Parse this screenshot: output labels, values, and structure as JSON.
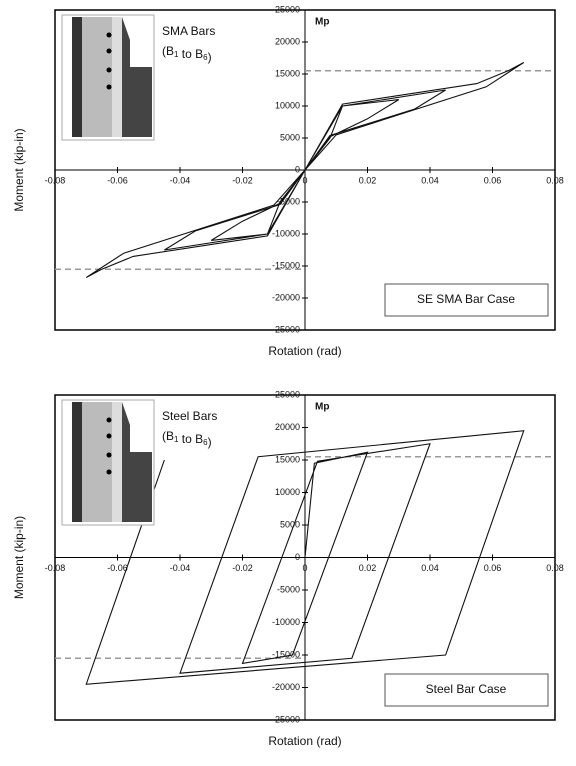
{
  "chart_data": [
    {
      "type": "line",
      "xlabel": "Rotation (rad)",
      "ylabel": "Moment (kip-in)",
      "xlim": [
        -0.08,
        0.08
      ],
      "ylim": [
        -25000,
        25000
      ],
      "xticks": [
        -0.08,
        -0.06,
        -0.04,
        -0.02,
        0,
        0.02,
        0.04,
        0.06,
        0.08
      ],
      "yticks": [
        -25000,
        -20000,
        -15000,
        -10000,
        -5000,
        0,
        5000,
        10000,
        15000,
        20000,
        25000
      ],
      "series": [
        {
          "color": "#111111",
          "x": [
            0,
            0.008,
            0.012,
            0.03,
            0.02,
            0.008,
            0,
            -0.008,
            -0.012,
            -0.03,
            -0.02,
            -0.008,
            0,
            0.012,
            0.045,
            0.035,
            0.008,
            0,
            -0.012,
            -0.045,
            -0.035,
            -0.008,
            0,
            0.012,
            0.055,
            0.065,
            0.07,
            0.058,
            0.01,
            0,
            -0.012,
            -0.055,
            -0.065,
            -0.07,
            -0.058,
            -0.01,
            0
          ],
          "values": [
            0,
            5000,
            10000,
            11000,
            8000,
            5200,
            0,
            -5000,
            -10000,
            -11000,
            -8000,
            -5200,
            0,
            10000,
            12500,
            9500,
            5400,
            0,
            -10000,
            -12500,
            -9500,
            -5400,
            0,
            10300,
            13500,
            15500,
            16800,
            13000,
            5500,
            0,
            -10300,
            -13500,
            -15500,
            -16800,
            -13000,
            -5500,
            0
          ]
        }
      ],
      "mp_label": "Mp",
      "mp_lines": [
        15500,
        -15500
      ],
      "mp_color": "#999999",
      "bar_label": "SMA Bars",
      "range_label": {
        "prefix": "(B",
        "start": "1",
        "mid": " to B",
        "end": "6",
        "suffix": ")"
      },
      "case_label": "SE SMA Bar Case"
    },
    {
      "type": "line",
      "xlabel": "Rotation (rad)",
      "ylabel": "Moment (kip-in)",
      "xlim": [
        -0.08,
        0.08
      ],
      "ylim": [
        -25000,
        25000
      ],
      "xticks": [
        -0.08,
        -0.06,
        -0.04,
        -0.02,
        0,
        0.02,
        0.04,
        0.06,
        0.08
      ],
      "yticks": [
        -25000,
        -20000,
        -15000,
        -10000,
        -5000,
        0,
        5000,
        10000,
        15000,
        20000,
        25000
      ],
      "series": [
        {
          "color": "#111111",
          "x": [
            0,
            0.003,
            0.02,
            -0.004,
            -0.02,
            0.004,
            0.04,
            0.015,
            -0.04,
            -0.015,
            0.07,
            0.045,
            -0.07,
            -0.045
          ],
          "values": [
            0,
            14500,
            16200,
            -15000,
            -16300,
            14800,
            17500,
            -15500,
            -17800,
            15500,
            19500,
            -15000,
            -19500,
            15000
          ]
        }
      ],
      "mp_label": "Mp",
      "mp_lines": [
        15500,
        -15500
      ],
      "mp_color": "#999999",
      "bar_label": "Steel Bars",
      "range_label": {
        "prefix": "(B",
        "start": "1",
        "mid": " to B",
        "end": "6",
        "suffix": ")"
      },
      "case_label": "Steel Bar Case"
    }
  ]
}
